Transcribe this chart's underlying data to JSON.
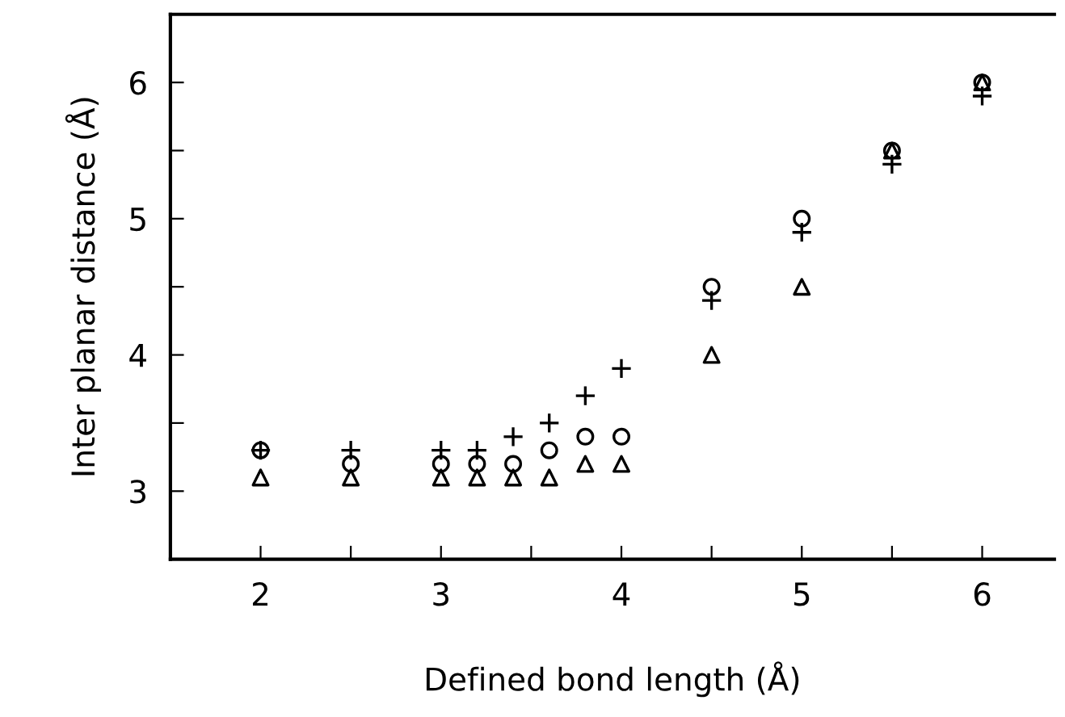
{
  "chart_data": {
    "type": "scatter",
    "xlabel": "Defined bond length (Å)",
    "ylabel": "Inter planar distance (Å)",
    "x": [
      2,
      2.5,
      3,
      3.2,
      3.4,
      3.6,
      3.8,
      4,
      4.5,
      5,
      5.5,
      6
    ],
    "series": [
      {
        "color": "#000000",
        "marker": "circle",
        "values": [
          3.3,
          3.2,
          3.2,
          3.2,
          3.2,
          3.3,
          3.4,
          3.4,
          4.5,
          5.0,
          5.5,
          6.0
        ]
      },
      {
        "color": "#000000",
        "marker": "cross",
        "values": [
          3.3,
          3.3,
          3.3,
          3.3,
          3.4,
          3.5,
          3.7,
          3.9,
          4.4,
          4.9,
          5.4,
          5.9
        ]
      },
      {
        "color": "#000000",
        "marker": "triangle",
        "values": [
          3.1,
          3.1,
          3.1,
          3.1,
          3.1,
          3.1,
          3.2,
          3.2,
          4.0,
          4.5,
          5.5,
          6.0
        ]
      }
    ],
    "xlim": [
      1.5,
      6.4
    ],
    "ylim": [
      2.5,
      6.5
    ],
    "xticks": [
      2,
      {
        "value": 2.5,
        "label": null
      },
      3,
      {
        "value": 3.5,
        "label": null
      },
      4,
      {
        "value": 4.5,
        "label": null
      },
      5,
      {
        "value": 5.5,
        "label": null
      },
      6
    ],
    "yticks": [
      {
        "value": 2.5,
        "label": null
      },
      3,
      {
        "value": 3.5,
        "label": null
      },
      4,
      {
        "value": 4.5,
        "label": null
      },
      5,
      {
        "value": 5.5,
        "label": null
      },
      6
    ],
    "grid": false,
    "legend": false
  }
}
